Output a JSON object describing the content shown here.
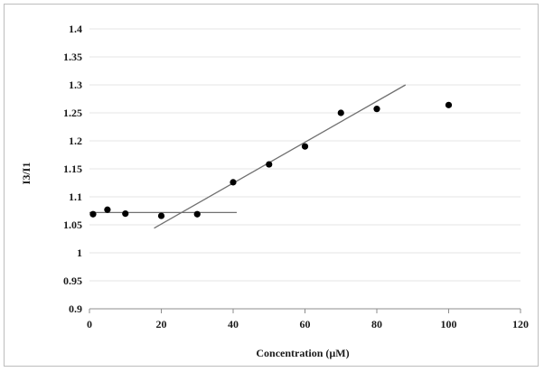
{
  "chart_data": {
    "type": "scatter",
    "title": "",
    "xlabel": "Concentration (µM)",
    "ylabel": "I3/I1",
    "xlim": [
      0,
      120
    ],
    "ylim": [
      0.9,
      1.4
    ],
    "xticks": [
      0,
      20,
      40,
      60,
      80,
      100,
      120
    ],
    "yticks": [
      0.9,
      0.95,
      1,
      1.05,
      1.1,
      1.15,
      1.2,
      1.25,
      1.3,
      1.35,
      1.4
    ],
    "ytick_labels": [
      "0.9",
      "0.95",
      "1",
      "1.05",
      "1.1",
      "1.15",
      "1.2",
      "1.25",
      "1.3",
      "1.35",
      "1.4"
    ],
    "grid": "horizontal",
    "legend": "none",
    "series": [
      {
        "x": [
          1,
          5,
          10,
          20,
          30,
          40,
          50,
          60,
          70,
          80,
          100
        ],
        "y": [
          1.069,
          1.077,
          1.07,
          1.066,
          1.069,
          1.126,
          1.158,
          1.19,
          1.25,
          1.257,
          1.264
        ]
      }
    ],
    "lines": [
      {
        "x": [
          0,
          41
        ],
        "y": [
          1.072,
          1.072
        ]
      },
      {
        "x": [
          18,
          88
        ],
        "y": [
          1.044,
          1.3
        ]
      }
    ],
    "colors": {
      "points": "#000000",
      "lines": "#707070",
      "grid": "#e6e6e6",
      "axis": "#8c8c8c"
    }
  }
}
